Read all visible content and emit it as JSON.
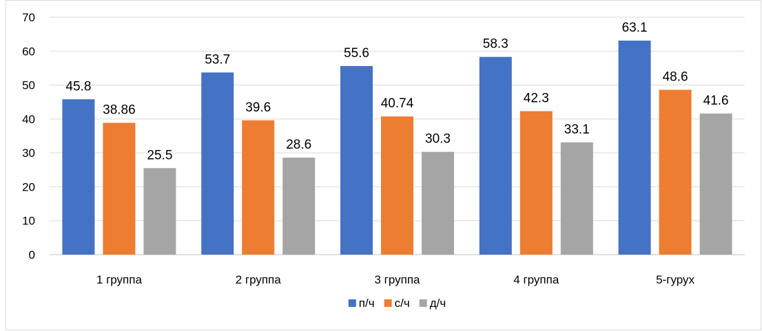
{
  "chart_data": {
    "type": "bar",
    "title": "",
    "xlabel": "",
    "ylabel": "",
    "categories": [
      "1 группа",
      "2 группа",
      "3 группа",
      "4 группа",
      "5-гурух"
    ],
    "series": [
      {
        "name": "п/ч",
        "color": "#4472C4",
        "values": [
          45.8,
          53.7,
          55.6,
          58.3,
          63.1
        ],
        "labels": [
          "45.8",
          "53.7",
          "55.6",
          "58.3",
          "63.1"
        ]
      },
      {
        "name": "с/ч",
        "color": "#ED7D31",
        "values": [
          38.86,
          39.6,
          40.74,
          42.3,
          48.6
        ],
        "labels": [
          "38.86",
          "39.6",
          "40.74",
          "42.3",
          "48.6"
        ]
      },
      {
        "name": "д/ч",
        "color": "#A5A5A5",
        "values": [
          25.5,
          28.6,
          30.3,
          33.1,
          41.6
        ],
        "labels": [
          "25.5",
          "28.6",
          "30.3",
          "33.1",
          "41.6"
        ]
      }
    ],
    "ylim": [
      0,
      70
    ],
    "yticks": [
      "0",
      "10",
      "20",
      "30",
      "40",
      "50",
      "60",
      "70"
    ],
    "grid": true,
    "legend": "bottom-center"
  }
}
